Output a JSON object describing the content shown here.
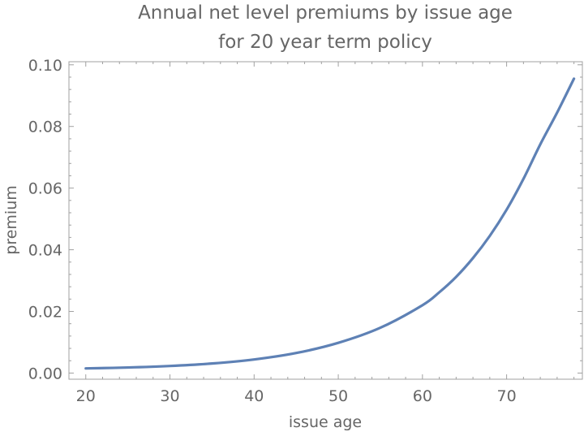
{
  "chart_data": {
    "type": "line",
    "title_line1": "Annual net level premiums by issue age",
    "title_line2": "for 20 year term policy",
    "xlabel": "issue age",
    "ylabel": "premium",
    "xlim": [
      18,
      79
    ],
    "ylim": [
      -0.002,
      0.101
    ],
    "x_ticks": [
      20,
      30,
      40,
      50,
      60,
      70
    ],
    "x_tick_labels": [
      "20",
      "30",
      "40",
      "50",
      "60",
      "70"
    ],
    "y_ticks": [
      0.0,
      0.02,
      0.04,
      0.06,
      0.08,
      0.1
    ],
    "y_tick_labels": [
      "0.00",
      "0.02",
      "0.04",
      "0.06",
      "0.08",
      "0.10"
    ],
    "grid": false,
    "line_color": "#5E81B5",
    "series": [
      {
        "x": [
          20,
          25,
          30,
          35,
          40,
          45,
          50,
          55,
          60,
          62,
          64,
          66,
          68,
          70,
          72,
          74,
          76,
          78
        ],
        "y": [
          0.0015,
          0.0018,
          0.0023,
          0.0031,
          0.0044,
          0.0065,
          0.0098,
          0.0147,
          0.022,
          0.0262,
          0.0312,
          0.0373,
          0.0445,
          0.053,
          0.063,
          0.0742,
          0.0845,
          0.0955
        ]
      }
    ]
  }
}
